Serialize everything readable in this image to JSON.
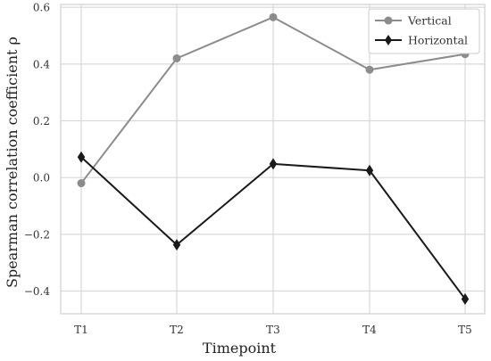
{
  "chart_data": {
    "type": "line",
    "title": "",
    "xlabel": "Timepoint",
    "ylabel": "Spearman correlation coefficient ρ",
    "categories": [
      "T1",
      "T2",
      "T3",
      "T4",
      "T5"
    ],
    "ylim": [
      -0.48,
      0.61
    ],
    "yticks": [
      0.6,
      0.4,
      0.2,
      0.0,
      -0.2,
      -0.4
    ],
    "ytick_labels": [
      "0.6",
      "0.4",
      "0.2",
      "0.0",
      "−0.2",
      "−0.4"
    ],
    "grid": true,
    "legend_position": "top-right",
    "series": [
      {
        "name": "Vertical",
        "values": [
          -0.02,
          0.42,
          0.565,
          0.38,
          0.435
        ],
        "color": "#8c8c8c",
        "marker": "circle"
      },
      {
        "name": "Horizontal",
        "values": [
          0.072,
          -0.237,
          0.048,
          0.025,
          -0.428
        ],
        "color": "#1a1a1a",
        "marker": "diamond"
      }
    ]
  }
}
